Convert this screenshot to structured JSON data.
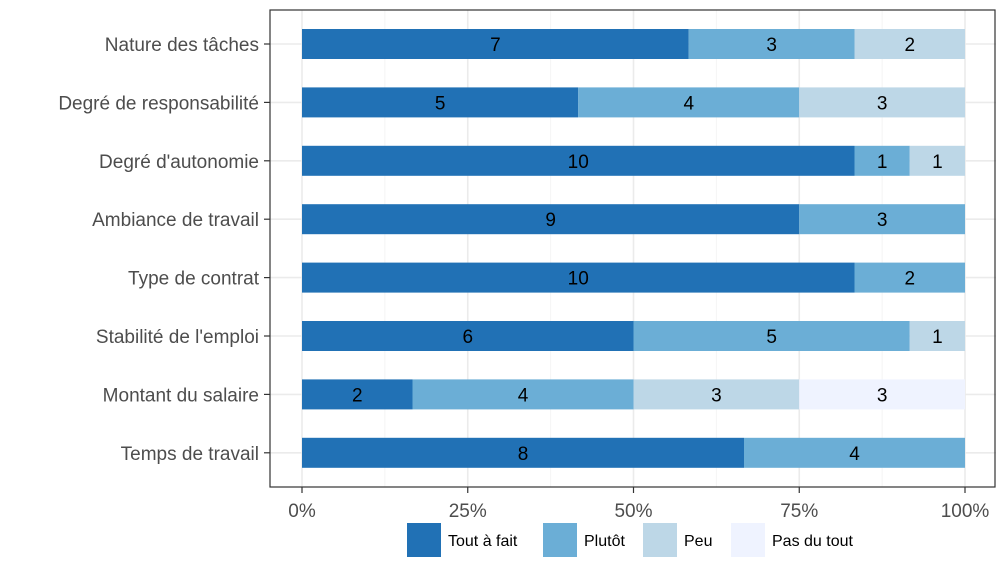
{
  "chart_data": {
    "type": "bar",
    "orientation": "horizontal",
    "stacked": true,
    "normalized": true,
    "title": "",
    "xlabel": "",
    "ylabel": "",
    "xlim": [
      0,
      1
    ],
    "x_ticks": [
      "0%",
      "25%",
      "50%",
      "75%",
      "100%"
    ],
    "grid": true,
    "legend_position": "bottom",
    "categories": [
      "Nature des tâches",
      "Degré de responsabilité",
      "Degré d'autonomie",
      "Ambiance de travail",
      "Type de contrat",
      "Stabilité de l'emploi",
      "Montant du salaire",
      "Temps de travail"
    ],
    "series": [
      {
        "name": "Tout à fait",
        "color": "#2171b5",
        "values": [
          7,
          5,
          10,
          9,
          10,
          6,
          2,
          8
        ]
      },
      {
        "name": "Plutôt",
        "color": "#6baed6",
        "values": [
          3,
          4,
          1,
          3,
          2,
          5,
          4,
          4
        ]
      },
      {
        "name": "Peu",
        "color": "#bdd7e7",
        "values": [
          2,
          3,
          1,
          0,
          0,
          1,
          3,
          0
        ]
      },
      {
        "name": "Pas du tout",
        "color": "#eff3ff",
        "values": [
          0,
          0,
          0,
          0,
          0,
          0,
          3,
          0
        ]
      }
    ]
  }
}
